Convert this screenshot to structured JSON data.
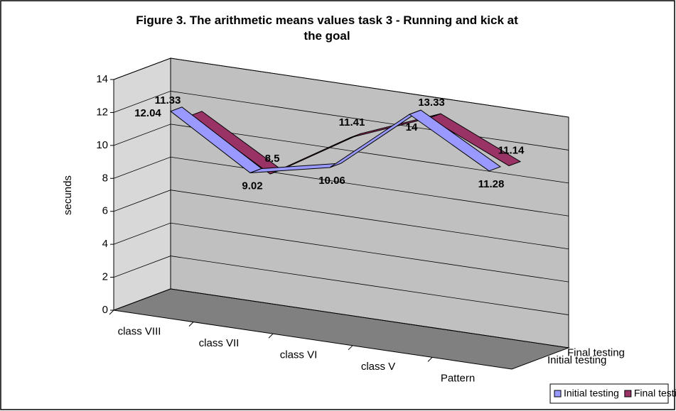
{
  "chart_data": {
    "type": "line3d",
    "title": "Figure 3. The arithmetic means values task 3 - Running and kick at the goal",
    "y_label": "secunds",
    "categories": [
      "class VIII",
      "class VII",
      "class VI",
      "class V",
      "Pattern"
    ],
    "series": [
      {
        "name": "Initial testing",
        "color": "#9999ff",
        "values": [
          12.04,
          9.02,
          10.06,
          14,
          11.28
        ]
      },
      {
        "name": "Final testing",
        "color": "#993366",
        "values": [
          11.33,
          8.5,
          11.41,
          13.33,
          11.14
        ]
      }
    ],
    "ylim": [
      0,
      14
    ],
    "yticks": [
      0,
      2,
      4,
      6,
      8,
      10,
      12,
      14
    ],
    "grid": true,
    "legend": "bottom-right"
  }
}
